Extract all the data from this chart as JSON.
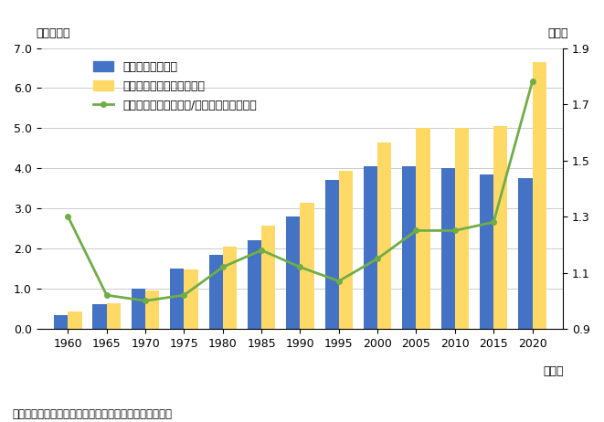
{
  "years": [
    1960,
    1965,
    1970,
    1975,
    1980,
    1985,
    1990,
    1995,
    2000,
    2005,
    2010,
    2015,
    2020
  ],
  "tokyo": [
    0.35,
    0.62,
    1.0,
    1.5,
    1.85,
    2.2,
    2.8,
    3.7,
    4.05,
    4.05,
    4.0,
    3.85,
    3.75
  ],
  "others": [
    0.43,
    0.63,
    0.95,
    1.48,
    2.05,
    2.57,
    3.15,
    3.95,
    4.65,
    5.0,
    5.0,
    5.05,
    6.65
  ],
  "ratio": [
    1.3,
    1.02,
    1.0,
    1.02,
    1.12,
    1.18,
    1.12,
    1.07,
    1.15,
    1.25,
    1.25,
    1.28,
    1.78
  ],
  "bar_color_tokyo": "#4472c4",
  "bar_color_others": "#ffd966",
  "line_color_ratio": "#70ad47",
  "ylim_left": [
    0,
    7.0
  ],
  "ylim_right": [
    0.9,
    1.9
  ],
  "yticks_left": [
    0.0,
    1.0,
    2.0,
    3.0,
    4.0,
    5.0,
    6.0,
    7.0
  ],
  "yticks_right": [
    0.9,
    1.1,
    1.3,
    1.5,
    1.7,
    1.9
  ],
  "xlabel": "（年）",
  "ylabel_left": "（百万円）",
  "ylabel_right": "（倍）",
  "legend_tokyo": "東京都　（左軸）",
  "legend_others": "その他都道府県　（左軸）",
  "legend_ratio": "比率（その他都道府県/東京都）　（右軸）",
  "source": "（出所）内閣府、「社会資本ストック推計」、国勢調査",
  "bar_width": 1.8,
  "grid_color": "#cccccc",
  "background_color": "#ffffff"
}
